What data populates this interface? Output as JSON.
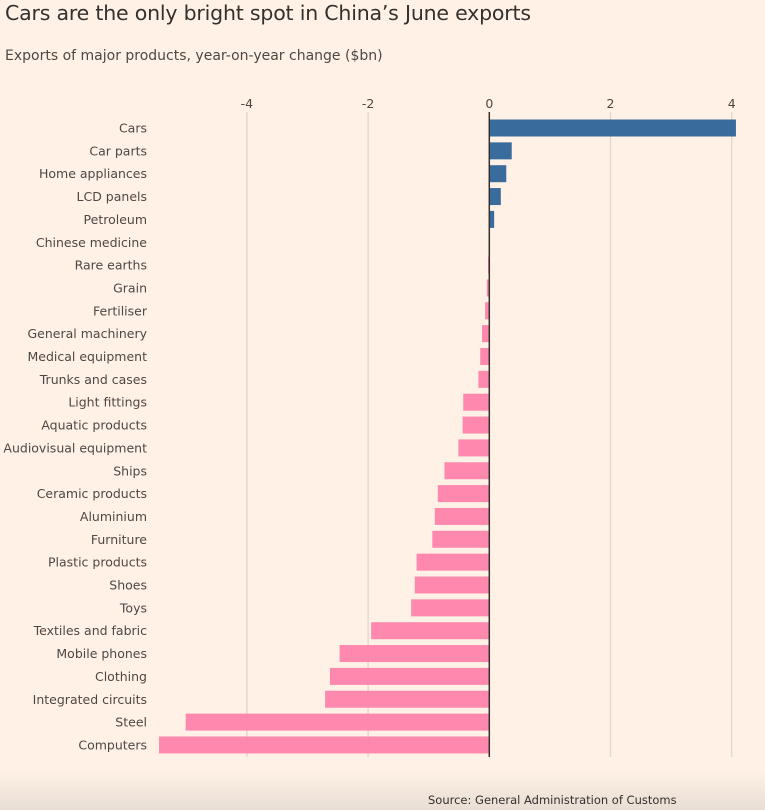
{
  "header": {
    "title": "Cars are the only bright spot in China’s June exports",
    "subtitle": "Exports of major products, year-on-year change ($bn)"
  },
  "footer": {
    "source": "Source: General Administration of Customs"
  },
  "colors": {
    "background": "#fff1e6",
    "positive": "#33669a",
    "negative": "#ff85ab",
    "gridline": "#e0d6cc",
    "zero_line": "#33302e",
    "text": "#4d4845"
  },
  "chart_data": {
    "type": "bar",
    "orientation": "horizontal",
    "title": "Cars are the only bright spot in China’s June exports",
    "subtitle": "Exports of major products, year-on-year change ($bn)",
    "xlabel": "",
    "ylabel": "",
    "xlim": [
      -5.5,
      4.1
    ],
    "xticks": [
      -4,
      -2,
      0,
      2,
      4
    ],
    "xtick_labels": [
      "-4",
      "-2",
      "0",
      "2",
      "4"
    ],
    "grid": true,
    "legend": "none",
    "categories": [
      "Cars",
      "Car parts",
      "Home appliances",
      "LCD panels",
      "Petroleum",
      "Chinese medicine",
      "Rare earths",
      "Grain",
      "Fertiliser",
      "General machinery",
      "Medical equipment",
      "Trunks and cases",
      "Light fittings",
      "Aquatic products",
      "Audiovisual equipment",
      "Ships",
      "Ceramic products",
      "Aluminium",
      "Furniture",
      "Plastic products",
      "Shoes",
      "Toys",
      "Textiles and fabric",
      "Mobile phones",
      "Clothing",
      "Integrated circuits",
      "Steel",
      "Computers"
    ],
    "values": [
      4.07,
      0.37,
      0.28,
      0.19,
      0.08,
      0.0,
      -0.02,
      -0.04,
      -0.07,
      -0.12,
      -0.15,
      -0.18,
      -0.43,
      -0.44,
      -0.51,
      -0.74,
      -0.85,
      -0.9,
      -0.94,
      -1.2,
      -1.23,
      -1.29,
      -1.95,
      -2.47,
      -2.63,
      -2.71,
      -5.01,
      -5.45
    ],
    "source": "Source: General Administration of Customs"
  }
}
